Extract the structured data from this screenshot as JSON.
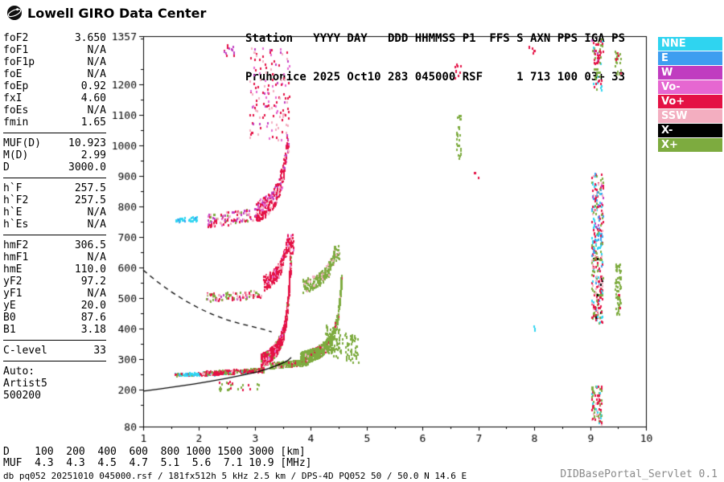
{
  "header": {
    "logo_text": "Lowell GIRO Data Center",
    "line1": "Station   YYYY DAY   DDD HHMMSS P1  FFS S AXN PPS IGA PS",
    "line2": "Pruhonice 2025 Oct10 283 045000 RSF     1 713 100 03+ 33"
  },
  "panel": {
    "groups": [
      {
        "rows": [
          {
            "label": "foF2",
            "value": "3.650"
          },
          {
            "label": "foF1",
            "value": "N/A"
          },
          {
            "label": "foF1p",
            "value": "N/A"
          },
          {
            "label": "foE",
            "value": "N/A"
          },
          {
            "label": "foEp",
            "value": "0.92"
          },
          {
            "label": "fxI",
            "value": "4.60"
          },
          {
            "label": "foEs",
            "value": "N/A"
          },
          {
            "label": "fmin",
            "value": "1.65"
          }
        ],
        "divider": true
      },
      {
        "rows": [
          {
            "label": "MUF(D)",
            "value": "10.923"
          },
          {
            "label": "M(D)",
            "value": "2.99"
          },
          {
            "label": "D",
            "value": "3000.0"
          }
        ],
        "divider": true
      },
      {
        "rows": [
          {
            "label": "h`F",
            "value": "257.5"
          },
          {
            "label": "h`F2",
            "value": "257.5"
          },
          {
            "label": "h`E",
            "value": "N/A"
          },
          {
            "label": "h`Es",
            "value": "N/A"
          }
        ],
        "divider": true
      },
      {
        "rows": [
          {
            "label": "hmF2",
            "value": "306.5"
          },
          {
            "label": "hmF1",
            "value": "N/A"
          },
          {
            "label": "hmE",
            "value": "110.0"
          },
          {
            "label": "yF2",
            "value": "97.2"
          },
          {
            "label": "yF1",
            "value": "N/A"
          },
          {
            "label": "yE",
            "value": "20.0"
          },
          {
            "label": "B0",
            "value": "87.6"
          },
          {
            "label": "B1",
            "value": "3.18"
          }
        ],
        "divider": true
      },
      {
        "rows": [
          {
            "label": "C-level",
            "value": "33"
          }
        ],
        "divider": true
      }
    ],
    "auto": [
      "Auto:",
      "Artist5",
      "500200"
    ]
  },
  "legend": {
    "items": [
      {
        "label": "NNE"
      },
      {
        "label": "E"
      },
      {
        "label": "W"
      },
      {
        "label": "Vo-"
      },
      {
        "label": "Vo+"
      },
      {
        "label": "SSW"
      },
      {
        "label": "X-"
      },
      {
        "label": "X+"
      }
    ]
  },
  "footer": {
    "d_row": "D    100  200  400  600  800 1000 1500 3000 [km]",
    "muf_row": "MUF  4.3  4.3  4.5  4.7  5.1  5.6  7.1 10.9 [MHz]",
    "status": "db pq052 20251010 045000.rsf / 181fx512h 5 kHz 2.5 km / DPS-4D PQ052 50 / 50.0 N 14.6 E",
    "servlet": "DIDBasePortal_Servlet 0.1"
  },
  "chart_data": {
    "type": "scatter",
    "title": "",
    "xlabel": "",
    "ylabel": "",
    "xlim": [
      1,
      10
    ],
    "ylim": [
      80,
      1357
    ],
    "x_ticks": [
      1,
      2,
      3,
      4,
      5,
      6,
      7,
      8,
      9,
      10
    ],
    "y_ticks": [
      80,
      200,
      300,
      400,
      500,
      600,
      700,
      800,
      900,
      1000,
      1100,
      1200,
      1357
    ],
    "grid": false,
    "legend_position": "right-outside",
    "palette": {
      "NNE": "#2FD4F0",
      "E": "#3E9EF0",
      "W": "#C03CC0",
      "Vo-": "#E667D1",
      "Vo+": "#E41144",
      "SSW": "#F3AEC0",
      "X-": "#000000",
      "X+": "#7DAB3F"
    },
    "key_values": {
      "foF2_MHz": 3.65,
      "fxI_MHz": 4.6,
      "fmin_MHz": 1.65,
      "hF_km": 257.5,
      "hmF2_km": 306.5
    },
    "groups": [
      {
        "name": "o-trace-flat-start",
        "curve": "flat",
        "f": [
          1.55,
          2.35
        ],
        "h0": 253,
        "slope": 4,
        "jitter": 4,
        "n": 130,
        "colors": [
          [
            "NNE",
            55
          ],
          [
            "E",
            10
          ],
          [
            "Vo+",
            25
          ],
          [
            "X+",
            10
          ]
        ]
      },
      {
        "name": "o-trace-flat-mid",
        "curve": "flat",
        "f": [
          2.05,
          3.15
        ],
        "h0": 257,
        "slope": 10,
        "jitter": 6,
        "n": 280,
        "colors": [
          [
            "Vo+",
            50
          ],
          [
            "X+",
            28
          ],
          [
            "SSW",
            12
          ],
          [
            "NNE",
            10
          ]
        ]
      },
      {
        "name": "o-trace-cusp",
        "curve": "asym",
        "f": [
          3.1,
          3.64
        ],
        "h0": 252,
        "k": 28,
        "fc": 3.7,
        "jitter": 22,
        "hmax": 625,
        "n": 750,
        "colors": [
          [
            "Vo+",
            74
          ],
          [
            "SSW",
            12
          ],
          [
            "Vo-",
            6
          ],
          [
            "X+",
            8
          ]
        ]
      },
      {
        "name": "x-trace-flat",
        "curve": "flat",
        "f": [
          3.25,
          3.95
        ],
        "h0": 283,
        "slope": 14,
        "jitter": 9,
        "n": 220,
        "colors": [
          [
            "X+",
            82
          ],
          [
            "SSW",
            10
          ],
          [
            "Vo+",
            8
          ]
        ]
      },
      {
        "name": "x-trace-cusp",
        "curve": "asym",
        "f": [
          3.8,
          4.55
        ],
        "h0": 278,
        "k": 24,
        "fc": 4.62,
        "jitter": 20,
        "hmax": 565,
        "n": 700,
        "colors": [
          [
            "X+",
            88
          ],
          [
            "SSW",
            6
          ],
          [
            "Vo+",
            6
          ]
        ]
      },
      {
        "name": "x-spread-tail",
        "curve": "flat",
        "f": [
          4.25,
          4.85
        ],
        "h0": 370,
        "slope": -70,
        "jitter": 48,
        "n": 120,
        "colors": [
          [
            "X+",
            100
          ]
        ]
      },
      {
        "name": "hop2-flat",
        "curve": "flat",
        "f": [
          2.1,
          3.1
        ],
        "h0": 505,
        "slope": 12,
        "jitter": 14,
        "n": 90,
        "colors": [
          [
            "Vo+",
            40
          ],
          [
            "X+",
            30
          ],
          [
            "SSW",
            20
          ],
          [
            "W",
            10
          ]
        ]
      },
      {
        "name": "hop2-o-cusp",
        "curve": "asym",
        "f": [
          3.15,
          3.68
        ],
        "h0": 495,
        "k": 32,
        "fc": 3.74,
        "jitter": 26,
        "hmax": 690,
        "n": 240,
        "colors": [
          [
            "Vo+",
            70
          ],
          [
            "SSW",
            18
          ],
          [
            "Vo-",
            12
          ]
        ]
      },
      {
        "name": "hop2-x-cusp",
        "curve": "asym",
        "f": [
          3.85,
          4.5
        ],
        "h0": 508,
        "k": 26,
        "fc": 4.6,
        "jitter": 22,
        "hmax": 660,
        "n": 210,
        "colors": [
          [
            "X+",
            85
          ],
          [
            "SSW",
            15
          ]
        ]
      },
      {
        "name": "hop3-cyan-lead",
        "curve": "flat",
        "f": [
          1.55,
          1.95
        ],
        "h0": 758,
        "slope": 8,
        "jitter": 7,
        "n": 40,
        "colors": [
          [
            "NNE",
            80
          ],
          [
            "E",
            20
          ]
        ]
      },
      {
        "name": "hop3-flat",
        "curve": "flat",
        "f": [
          2.15,
          3.1
        ],
        "h0": 755,
        "slope": 25,
        "jitter": 22,
        "n": 120,
        "colors": [
          [
            "Vo+",
            35
          ],
          [
            "SSW",
            25
          ],
          [
            "W",
            15
          ],
          [
            "Vo-",
            10
          ],
          [
            "X+",
            15
          ]
        ]
      },
      {
        "name": "hop3-cusp",
        "curve": "asym",
        "f": [
          3.0,
          3.6
        ],
        "h0": 730,
        "k": 38,
        "fc": 3.7,
        "jitter": 34,
        "hmax": 1010,
        "n": 280,
        "colors": [
          [
            "Vo+",
            62
          ],
          [
            "SSW",
            18
          ],
          [
            "Vo-",
            10
          ],
          [
            "W",
            10
          ]
        ]
      },
      {
        "name": "hop4-cloud",
        "curve": "strip",
        "f": [
          2.9,
          3.62
        ],
        "h0": 1020,
        "h1": 1320,
        "n": 150,
        "colors": [
          [
            "Vo+",
            55
          ],
          [
            "SSW",
            20
          ],
          [
            "Vo-",
            15
          ],
          [
            "W",
            10
          ]
        ]
      },
      {
        "name": "topleft-dots",
        "curve": "strip",
        "f": [
          2.42,
          2.62
        ],
        "h0": 1295,
        "h1": 1335,
        "n": 14,
        "colors": [
          [
            "W",
            50
          ],
          [
            "Vo+",
            50
          ]
        ]
      },
      {
        "name": "under-trace-dots",
        "curve": "flat",
        "f": [
          2.3,
          3.1
        ],
        "h0": 215,
        "slope": 0,
        "jitter": 14,
        "n": 26,
        "colors": [
          [
            "X+",
            60
          ],
          [
            "Vo+",
            40
          ]
        ]
      },
      {
        "name": "strip-6p6-mid",
        "curve": "strip",
        "f": [
          6.58,
          6.68
        ],
        "h0": 950,
        "h1": 1100,
        "n": 30,
        "colors": [
          [
            "X+",
            100
          ]
        ]
      },
      {
        "name": "dots-6p6-top",
        "curve": "strip",
        "f": [
          6.55,
          6.7
        ],
        "h0": 1220,
        "h1": 1270,
        "n": 10,
        "colors": [
          [
            "Vo+",
            70
          ],
          [
            "SSW",
            30
          ]
        ]
      },
      {
        "name": "dot-7-900",
        "curve": "strip",
        "f": [
          6.92,
          7.0
        ],
        "h0": 895,
        "h1": 915,
        "n": 4,
        "colors": [
          [
            "Vo+",
            100
          ]
        ]
      },
      {
        "name": "dot-8-400",
        "curve": "strip",
        "f": [
          7.92,
          8.0
        ],
        "h0": 395,
        "h1": 412,
        "n": 3,
        "colors": [
          [
            "NNE",
            100
          ]
        ]
      },
      {
        "name": "dots-8-top",
        "curve": "strip",
        "f": [
          7.9,
          8.05
        ],
        "h0": 1300,
        "h1": 1330,
        "n": 6,
        "colors": [
          [
            "Vo+",
            80
          ],
          [
            "X+",
            20
          ]
        ]
      },
      {
        "name": "rfi-9p1-top",
        "curve": "strip",
        "f": [
          9.02,
          9.22
        ],
        "h0": 1270,
        "h1": 1350,
        "n": 45,
        "colors": [
          [
            "Vo+",
            45
          ],
          [
            "X+",
            35
          ],
          [
            "W",
            10
          ],
          [
            "NNE",
            10
          ]
        ]
      },
      {
        "name": "rfi-9p1-1200",
        "curve": "strip",
        "f": [
          9.04,
          9.2
        ],
        "h0": 1180,
        "h1": 1255,
        "n": 25,
        "colors": [
          [
            "X+",
            45
          ],
          [
            "Vo+",
            35
          ],
          [
            "NNE",
            20
          ]
        ]
      },
      {
        "name": "rfi-9p1-800",
        "curve": "strip",
        "f": [
          9.02,
          9.22
        ],
        "h0": 640,
        "h1": 910,
        "n": 170,
        "colors": [
          [
            "Vo+",
            30
          ],
          [
            "NNE",
            20
          ],
          [
            "E",
            15
          ],
          [
            "X+",
            20
          ],
          [
            "SSW",
            10
          ],
          [
            "W",
            5
          ]
        ]
      },
      {
        "name": "rfi-9p1-500",
        "curve": "strip",
        "f": [
          9.02,
          9.22
        ],
        "h0": 420,
        "h1": 640,
        "n": 150,
        "colors": [
          [
            "Vo+",
            28
          ],
          [
            "X+",
            28
          ],
          [
            "SSW",
            15
          ],
          [
            "NNE",
            14
          ],
          [
            "E",
            10
          ],
          [
            "X-",
            5
          ]
        ]
      },
      {
        "name": "rfi-9p1-bottom",
        "curve": "strip",
        "f": [
          9.02,
          9.2
        ],
        "h0": 90,
        "h1": 215,
        "n": 95,
        "colors": [
          [
            "Vo+",
            35
          ],
          [
            "X+",
            35
          ],
          [
            "NNE",
            15
          ],
          [
            "SSW",
            15
          ]
        ]
      },
      {
        "name": "rfi-9p5-mid",
        "curve": "strip",
        "f": [
          9.44,
          9.54
        ],
        "h0": 450,
        "h1": 615,
        "n": 65,
        "colors": [
          [
            "X+",
            90
          ],
          [
            "Vo+",
            10
          ]
        ]
      },
      {
        "name": "rfi-9p5-top",
        "curve": "strip",
        "f": [
          9.44,
          9.54
        ],
        "h0": 1235,
        "h1": 1315,
        "n": 22,
        "colors": [
          [
            "X+",
            80
          ],
          [
            "Vo+",
            20
          ]
        ]
      }
    ],
    "lines": {
      "profile_solid": [
        [
          1.0,
          196
        ],
        [
          1.3,
          203
        ],
        [
          1.6,
          211
        ],
        [
          1.9,
          219
        ],
        [
          2.2,
          228
        ],
        [
          2.5,
          238
        ],
        [
          2.8,
          249
        ],
        [
          3.05,
          259
        ],
        [
          3.25,
          270
        ],
        [
          3.45,
          284
        ],
        [
          3.58,
          295
        ],
        [
          3.65,
          306
        ]
      ],
      "transmission_dashed": [
        [
          1.0,
          592
        ],
        [
          1.25,
          554
        ],
        [
          1.5,
          521
        ],
        [
          1.75,
          492
        ],
        [
          2.0,
          467
        ],
        [
          2.25,
          446
        ],
        [
          2.5,
          429
        ],
        [
          2.75,
          416
        ],
        [
          3.0,
          405
        ],
        [
          3.15,
          398
        ],
        [
          3.3,
          390
        ]
      ]
    }
  }
}
